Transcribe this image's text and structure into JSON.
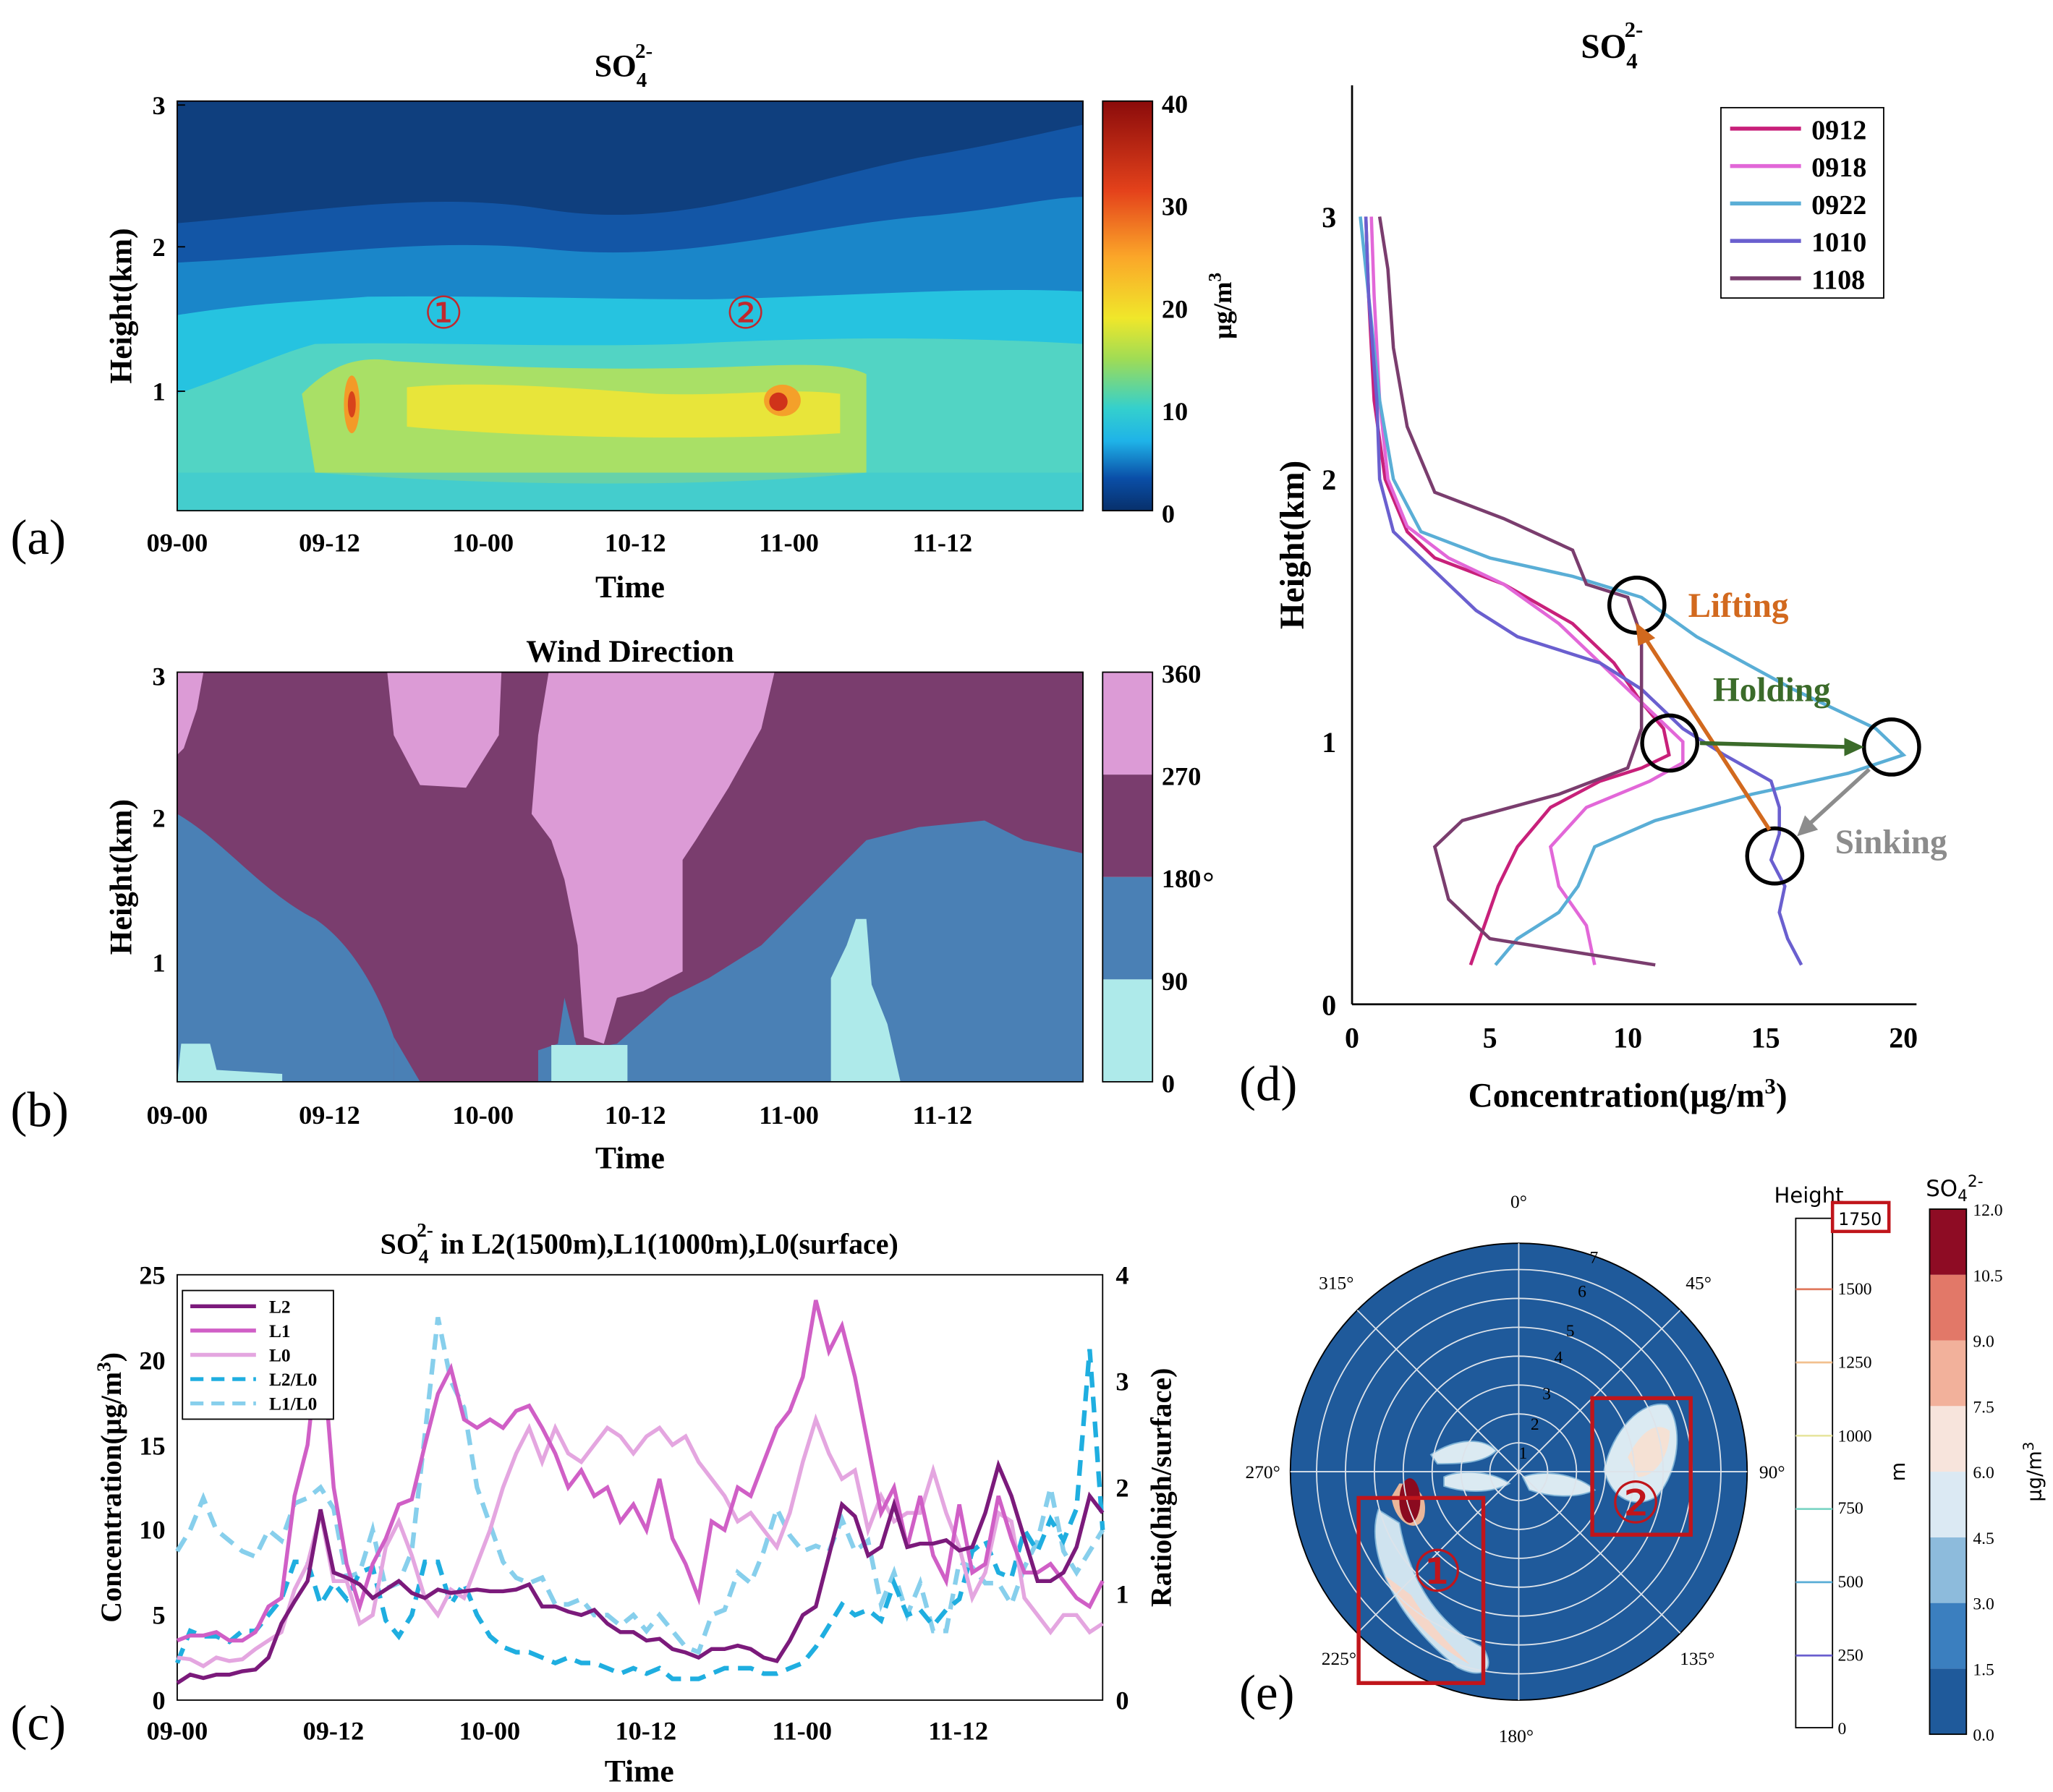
{
  "chart_data": [
    {
      "panel": "(a)",
      "type": "heatmap",
      "title": "SO42-",
      "title_main": "SO",
      "title_sub": "4",
      "title_sup": "2-",
      "xlabel": "Time",
      "ylabel": "Height(km)",
      "xticks": [
        "09-00",
        "09-12",
        "10-00",
        "10-12",
        "11-00",
        "11-12"
      ],
      "yticks": [
        "1",
        "2",
        "3"
      ],
      "xlim": [
        0,
        71
      ],
      "ylim": [
        0.2,
        3
      ],
      "colorbar": {
        "label": "µg/m3",
        "label_main": "µg/m",
        "label_sup": "3",
        "ticks": [
          0,
          10,
          20,
          30,
          40
        ],
        "lim": [
          0,
          40
        ]
      },
      "annotations": [
        {
          "text": "①",
          "x": 20.5,
          "y": 1.57,
          "color": "#c0282d"
        },
        {
          "text": "②",
          "x": 44.5,
          "y": 1.57,
          "color": "#c0282d"
        }
      ]
    },
    {
      "panel": "(b)",
      "type": "heatmap",
      "title": "Wind Direction",
      "xlabel": "Time",
      "ylabel": "Height(km)",
      "xticks": [
        "09-00",
        "09-12",
        "10-00",
        "10-12",
        "11-00",
        "11-12"
      ],
      "yticks": [
        "1",
        "2",
        "3"
      ],
      "xlim": [
        0,
        71
      ],
      "ylim": [
        0.2,
        3
      ],
      "colorbar": {
        "label": "°",
        "ticks": [
          0,
          90,
          180,
          270,
          360
        ],
        "classes": [
          {
            "range": [
              0,
              90
            ],
            "color": "#aeeaea"
          },
          {
            "range": [
              90,
              180
            ],
            "color": "#4a80b5"
          },
          {
            "range": [
              180,
              270
            ],
            "color": "#7a3d6e"
          },
          {
            "range": [
              270,
              360
            ],
            "color": "#dc9bd6"
          }
        ]
      }
    },
    {
      "panel": "(c)",
      "type": "line",
      "title": "SO42- in L2(1500m),L1(1000m),L0(surface)",
      "title_main": "SO",
      "title_sub": "4",
      "title_sup": "2-",
      "title_rest": " in L2(1500m),L1(1000m),L0(surface)",
      "xlabel": "Time",
      "ylabel": "Concentration(µg/m3)",
      "ylabel_main": "Concentration(µg/m",
      "ylabel_sup": "3",
      "ylabel_end": ")",
      "y2label": "Ratio(high/surface)",
      "xticks": [
        "09-00",
        "09-12",
        "10-00",
        "10-12",
        "11-00",
        "11-12"
      ],
      "yticks": [
        0,
        5,
        10,
        15,
        20,
        25
      ],
      "y2ticks": [
        0,
        1,
        2,
        3,
        4
      ],
      "xlim": [
        0,
        71
      ],
      "ylim": [
        0,
        25
      ],
      "y2lim": [
        0,
        4
      ],
      "legend": "top-left",
      "series": [
        {
          "name": "L2",
          "axis": "left",
          "color": "#7b1a7b",
          "dash": false,
          "values": [
            1.0,
            1.5,
            1.3,
            1.5,
            1.5,
            1.7,
            1.8,
            2.5,
            4.5,
            5.8,
            7.0,
            11.2,
            7.5,
            7.2,
            6.8,
            6.0,
            6.5,
            7.0,
            6.3,
            6.0,
            6.5,
            6.3,
            6.4,
            6.5,
            6.4,
            6.4,
            6.5,
            6.8,
            5.5,
            5.5,
            5.2,
            5.0,
            5.3,
            4.5,
            4.0,
            4.0,
            3.5,
            3.6,
            3.0,
            2.8,
            2.5,
            3.0,
            3.0,
            3.2,
            3.0,
            2.5,
            2.3,
            3.5,
            5.0,
            5.5,
            8.5,
            11.5,
            10.8,
            8.5,
            9.0,
            11.5,
            9.0,
            9.2,
            9.2,
            9.4,
            8.8,
            9.0,
            11.0,
            13.8,
            12.0,
            9.5,
            7.0,
            7.0,
            7.5,
            9.0,
            12.0,
            11.0
          ]
        },
        {
          "name": "L1",
          "axis": "left",
          "color": "#d05fc6",
          "dash": false,
          "values": [
            3.5,
            3.8,
            3.8,
            4.0,
            3.5,
            3.5,
            4.0,
            5.5,
            6.0,
            12.0,
            15.0,
            22.0,
            12.5,
            8.0,
            5.5,
            8.0,
            9.5,
            11.5,
            11.8,
            15.0,
            18.0,
            19.5,
            16.5,
            16.0,
            16.5,
            16.0,
            17.0,
            17.3,
            16.0,
            14.5,
            12.5,
            13.5,
            12.0,
            12.5,
            10.5,
            11.5,
            10.0,
            13.0,
            9.5,
            8.0,
            6.0,
            10.5,
            10.0,
            12.5,
            12.0,
            14.0,
            16.0,
            17.0,
            19.0,
            23.5,
            20.5,
            22.0,
            19.0,
            15.0,
            11.0,
            12.5,
            9.0,
            12.0,
            8.5,
            7.0,
            11.5,
            7.5,
            8.0,
            12.0,
            9.5,
            7.5,
            7.5,
            8.0,
            7.0,
            6.0,
            5.5,
            7.0
          ]
        },
        {
          "name": "L0",
          "axis": "left",
          "color": "#e4a6e0",
          "dash": false,
          "values": [
            2.5,
            2.4,
            2.0,
            2.5,
            2.3,
            2.4,
            3.0,
            3.5,
            4.0,
            6.5,
            8.0,
            11.0,
            7.0,
            7.0,
            4.5,
            5.0,
            9.0,
            10.5,
            8.5,
            6.0,
            5.0,
            6.5,
            6.0,
            8.0,
            10.0,
            12.5,
            14.5,
            16.0,
            14.0,
            16.0,
            14.5,
            14.0,
            15.0,
            16.0,
            15.5,
            14.5,
            15.5,
            16.0,
            15.0,
            15.5,
            14.0,
            13.0,
            12.0,
            10.5,
            11.0,
            10.0,
            9.0,
            11.0,
            14.0,
            16.5,
            14.5,
            13.0,
            13.5,
            10.0,
            12.0,
            10.5,
            11.0,
            11.0,
            13.5,
            11.0,
            9.0,
            6.0,
            7.5,
            11.0,
            10.5,
            6.0,
            5.0,
            4.0,
            5.0,
            5.0,
            4.0,
            4.5
          ]
        },
        {
          "name": "L2/L0",
          "axis": "right",
          "color": "#1faee0",
          "dash": true,
          "values": [
            0.35,
            0.65,
            0.6,
            0.6,
            0.55,
            0.65,
            0.65,
            0.8,
            0.95,
            1.3,
            1.3,
            0.9,
            1.1,
            0.95,
            1.2,
            1.25,
            0.75,
            0.6,
            0.8,
            1.3,
            1.3,
            0.9,
            1.1,
            0.8,
            0.6,
            0.5,
            0.45,
            0.45,
            0.4,
            0.35,
            0.4,
            0.35,
            0.35,
            0.3,
            0.25,
            0.3,
            0.25,
            0.3,
            0.2,
            0.2,
            0.2,
            0.25,
            0.3,
            0.3,
            0.3,
            0.25,
            0.25,
            0.3,
            0.35,
            0.5,
            0.7,
            0.9,
            0.8,
            0.85,
            0.75,
            1.1,
            0.8,
            0.85,
            0.7,
            0.85,
            0.95,
            1.4,
            1.5,
            1.2,
            1.15,
            1.6,
            1.4,
            1.7,
            1.5,
            1.8,
            3.3,
            1.6
          ]
        },
        {
          "name": "L1/L0",
          "axis": "right",
          "color": "#87cfec",
          "dash": true,
          "values": [
            1.4,
            1.6,
            1.9,
            1.6,
            1.5,
            1.4,
            1.35,
            1.6,
            1.5,
            1.85,
            1.9,
            2.0,
            1.8,
            1.15,
            1.2,
            1.6,
            1.05,
            1.1,
            1.4,
            2.5,
            3.6,
            3.0,
            2.75,
            2.0,
            1.65,
            1.3,
            1.15,
            1.1,
            1.15,
            0.9,
            0.9,
            0.95,
            0.8,
            0.8,
            0.7,
            0.8,
            0.65,
            0.8,
            0.65,
            0.5,
            0.45,
            0.8,
            0.85,
            1.2,
            1.1,
            1.4,
            1.8,
            1.55,
            1.4,
            1.45,
            1.4,
            1.7,
            1.4,
            1.5,
            0.9,
            1.2,
            0.8,
            1.1,
            0.65,
            0.65,
            1.3,
            1.25,
            1.1,
            1.1,
            0.9,
            1.25,
            1.5,
            2.0,
            1.4,
            1.2,
            1.4,
            1.6
          ]
        }
      ]
    },
    {
      "panel": "(d)",
      "type": "line",
      "title": "SO42-",
      "title_main": "SO",
      "title_sub": "4",
      "title_sup": "2-",
      "xlabel": "Concentration(µg/m3)",
      "xlabel_main": "Concentration(µg/m",
      "xlabel_sup": "3",
      "xlabel_end": ")",
      "ylabel": "Height(km)",
      "xticks": [
        0,
        5,
        10,
        15,
        20
      ],
      "yticks": [
        0,
        1,
        2,
        3
      ],
      "xlim": [
        0,
        20
      ],
      "ylim": [
        0,
        3
      ],
      "legend": "top-right",
      "series": [
        {
          "name": "0912",
          "color": "#c8207a",
          "points": [
            [
              4.3,
              0.15
            ],
            [
              4.8,
              0.3
            ],
            [
              5.3,
              0.45
            ],
            [
              6.0,
              0.6
            ],
            [
              7.2,
              0.75
            ],
            [
              9.0,
              0.85
            ],
            [
              10.5,
              0.9
            ],
            [
              11.5,
              0.95
            ],
            [
              11.3,
              1.05
            ],
            [
              10.5,
              1.15
            ],
            [
              9.5,
              1.3
            ],
            [
              8.0,
              1.45
            ],
            [
              5.5,
              1.6
            ],
            [
              3.0,
              1.7
            ],
            [
              2.0,
              1.8
            ],
            [
              1.2,
              2.0
            ],
            [
              0.8,
              2.3
            ],
            [
              0.6,
              2.7
            ],
            [
              0.5,
              3.0
            ]
          ]
        },
        {
          "name": "0918",
          "color": "#e267d8",
          "points": [
            [
              8.8,
              0.15
            ],
            [
              8.5,
              0.3
            ],
            [
              7.5,
              0.45
            ],
            [
              7.2,
              0.6
            ],
            [
              8.5,
              0.75
            ],
            [
              10.8,
              0.85
            ],
            [
              12.0,
              0.92
            ],
            [
              12.0,
              1.0
            ],
            [
              11.0,
              1.1
            ],
            [
              9.5,
              1.25
            ],
            [
              7.5,
              1.45
            ],
            [
              5.5,
              1.6
            ],
            [
              3.5,
              1.7
            ],
            [
              2.0,
              1.82
            ],
            [
              1.3,
              2.0
            ],
            [
              1.0,
              2.3
            ],
            [
              0.8,
              2.7
            ],
            [
              0.7,
              3.0
            ]
          ]
        },
        {
          "name": "0922",
          "color": "#5aaed6",
          "points": [
            [
              5.2,
              0.15
            ],
            [
              6.0,
              0.25
            ],
            [
              7.5,
              0.35
            ],
            [
              8.2,
              0.45
            ],
            [
              8.8,
              0.6
            ],
            [
              11.0,
              0.7
            ],
            [
              14.5,
              0.8
            ],
            [
              18.0,
              0.88
            ],
            [
              20.0,
              0.95
            ],
            [
              19.0,
              1.05
            ],
            [
              16.0,
              1.2
            ],
            [
              12.5,
              1.4
            ],
            [
              10.5,
              1.55
            ],
            [
              8.0,
              1.63
            ],
            [
              5.0,
              1.7
            ],
            [
              2.5,
              1.8
            ],
            [
              1.5,
              2.0
            ],
            [
              1.0,
              2.3
            ],
            [
              0.6,
              2.7
            ],
            [
              0.3,
              3.0
            ]
          ]
        },
        {
          "name": "1010",
          "color": "#6a5fcf",
          "points": [
            [
              16.3,
              0.15
            ],
            [
              15.8,
              0.25
            ],
            [
              15.5,
              0.35
            ],
            [
              15.7,
              0.45
            ],
            [
              15.2,
              0.55
            ],
            [
              15.5,
              0.65
            ],
            [
              15.5,
              0.75
            ],
            [
              15.2,
              0.85
            ],
            [
              13.5,
              0.95
            ],
            [
              12.0,
              1.05
            ],
            [
              10.5,
              1.2
            ],
            [
              9.0,
              1.3
            ],
            [
              6.0,
              1.4
            ],
            [
              4.5,
              1.5
            ],
            [
              3.5,
              1.6
            ],
            [
              2.5,
              1.7
            ],
            [
              1.5,
              1.8
            ],
            [
              1.0,
              2.0
            ],
            [
              0.9,
              2.3
            ],
            [
              0.6,
              2.7
            ],
            [
              0.5,
              3.0
            ]
          ]
        },
        {
          "name": "1108",
          "color": "#7a3d6e",
          "points": [
            [
              11.0,
              0.15
            ],
            [
              8.0,
              0.2
            ],
            [
              5.0,
              0.25
            ],
            [
              3.5,
              0.4
            ],
            [
              3.0,
              0.6
            ],
            [
              4.0,
              0.7
            ],
            [
              7.5,
              0.8
            ],
            [
              10.0,
              0.9
            ],
            [
              10.5,
              1.05
            ],
            [
              10.5,
              1.25
            ],
            [
              10.5,
              1.4
            ],
            [
              10.0,
              1.55
            ],
            [
              8.5,
              1.6
            ],
            [
              8.0,
              1.73
            ],
            [
              5.5,
              1.85
            ],
            [
              3.0,
              1.95
            ],
            [
              2.0,
              2.2
            ],
            [
              1.5,
              2.5
            ],
            [
              1.3,
              2.8
            ],
            [
              1.0,
              3.0
            ]
          ]
        }
      ],
      "annotations": [
        {
          "text": "Lifting",
          "color": "#d2691e",
          "x": 14.6,
          "y": 1.5
        },
        {
          "text": "Holding",
          "color": "#3b6b2a",
          "x": 17.3,
          "y": 1.18
        },
        {
          "text": "Sinking",
          "color": "#8c8c8c",
          "x": 20.9,
          "y": 0.6
        }
      ]
    },
    {
      "panel": "(e)",
      "type": "heatmap",
      "projection": "polar",
      "angle_labels": [
        "0°",
        "45°",
        "90°",
        "135°",
        "180°",
        "225°",
        "270°",
        "315°"
      ],
      "radial_ticks": [
        "1",
        "2",
        "3",
        "4",
        "5",
        "6",
        "7"
      ],
      "annotations": [
        "①",
        "②"
      ],
      "colorbar_height": {
        "label": "Height",
        "unit": "m",
        "ticks": [
          0,
          250,
          500,
          750,
          1000,
          1250,
          1500
        ],
        "highlight": "1750"
      },
      "colorbar_so4": {
        "label": "SO42-",
        "label_main": "SO",
        "label_sub": "4",
        "label_sup": "2-",
        "unit": "µg/m3",
        "unit_main": "µg/m",
        "unit_sup": "3",
        "ticks": [
          "0.0",
          "1.5",
          "3.0",
          "4.5",
          "6.0",
          "7.5",
          "9.0",
          "10.5",
          "12.0"
        ]
      }
    }
  ],
  "panel_labels": [
    "(a)",
    "(b)",
    "(c)",
    "(d)",
    "(e)"
  ]
}
